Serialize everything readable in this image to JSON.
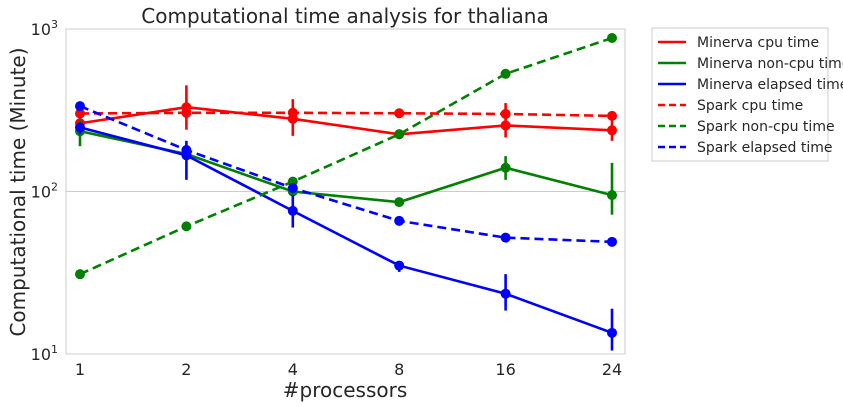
{
  "chart_data": {
    "type": "line",
    "title": "Computational time analysis for thaliana",
    "xlabel": "#processors",
    "ylabel": "Computational time (Minute)",
    "yscale": "log",
    "ylim": [
      10,
      1000
    ],
    "grid": "horizontal",
    "legend_placement": "outside-top-right",
    "categories": [
      "1",
      "2",
      "4",
      "8",
      "16",
      "24"
    ],
    "y_ticks": [
      {
        "value": 10,
        "base": "10",
        "exp": "1"
      },
      {
        "value": 100,
        "base": "10",
        "exp": "2"
      },
      {
        "value": 1000,
        "base": "10",
        "exp": "3"
      }
    ],
    "series": [
      {
        "name": "Minerva cpu time",
        "color": "#ff0000",
        "dash": "solid",
        "values": [
          263,
          330,
          280,
          225,
          255,
          238
        ],
        "err_low": [
          235,
          240,
          220,
          215,
          215,
          205
        ],
        "err_high": [
          295,
          450,
          370,
          235,
          350,
          285
        ]
      },
      {
        "name": "Minerva non-cpu time",
        "color": "#008000",
        "dash": "solid",
        "values": [
          235,
          170,
          100,
          86,
          140,
          95
        ],
        "err_low": [
          190,
          160,
          92,
          82,
          118,
          72
        ],
        "err_high": [
          275,
          182,
          108,
          90,
          165,
          150
        ]
      },
      {
        "name": "Minerva elapsed time",
        "color": "#0000ff",
        "dash": "solid",
        "values": [
          248,
          167,
          76,
          35,
          23.5,
          13.5
        ],
        "err_low": [
          225,
          118,
          60,
          32,
          18.5,
          10.5
        ],
        "err_high": [
          262,
          205,
          95,
          37,
          31,
          19
        ]
      },
      {
        "name": "Spark cpu time",
        "color": "#ff0000",
        "dash": "dashed",
        "values": [
          302,
          305,
          305,
          303,
          300,
          292
        ],
        "err_low": [
          302,
          305,
          305,
          303,
          300,
          292
        ],
        "err_high": [
          302,
          305,
          305,
          303,
          300,
          292
        ]
      },
      {
        "name": "Spark non-cpu time",
        "color": "#008000",
        "dash": "dashed",
        "values": [
          31,
          61,
          115,
          225,
          530,
          880
        ],
        "err_low": [
          31,
          61,
          115,
          225,
          530,
          880
        ],
        "err_high": [
          31,
          61,
          115,
          225,
          530,
          880
        ]
      },
      {
        "name": "Spark elapsed time",
        "color": "#0000ff",
        "dash": "dashed",
        "values": [
          335,
          180,
          105,
          66,
          52,
          49
        ],
        "err_low": [
          335,
          180,
          105,
          66,
          52,
          49
        ],
        "err_high": [
          335,
          180,
          105,
          66,
          52,
          49
        ]
      }
    ]
  }
}
